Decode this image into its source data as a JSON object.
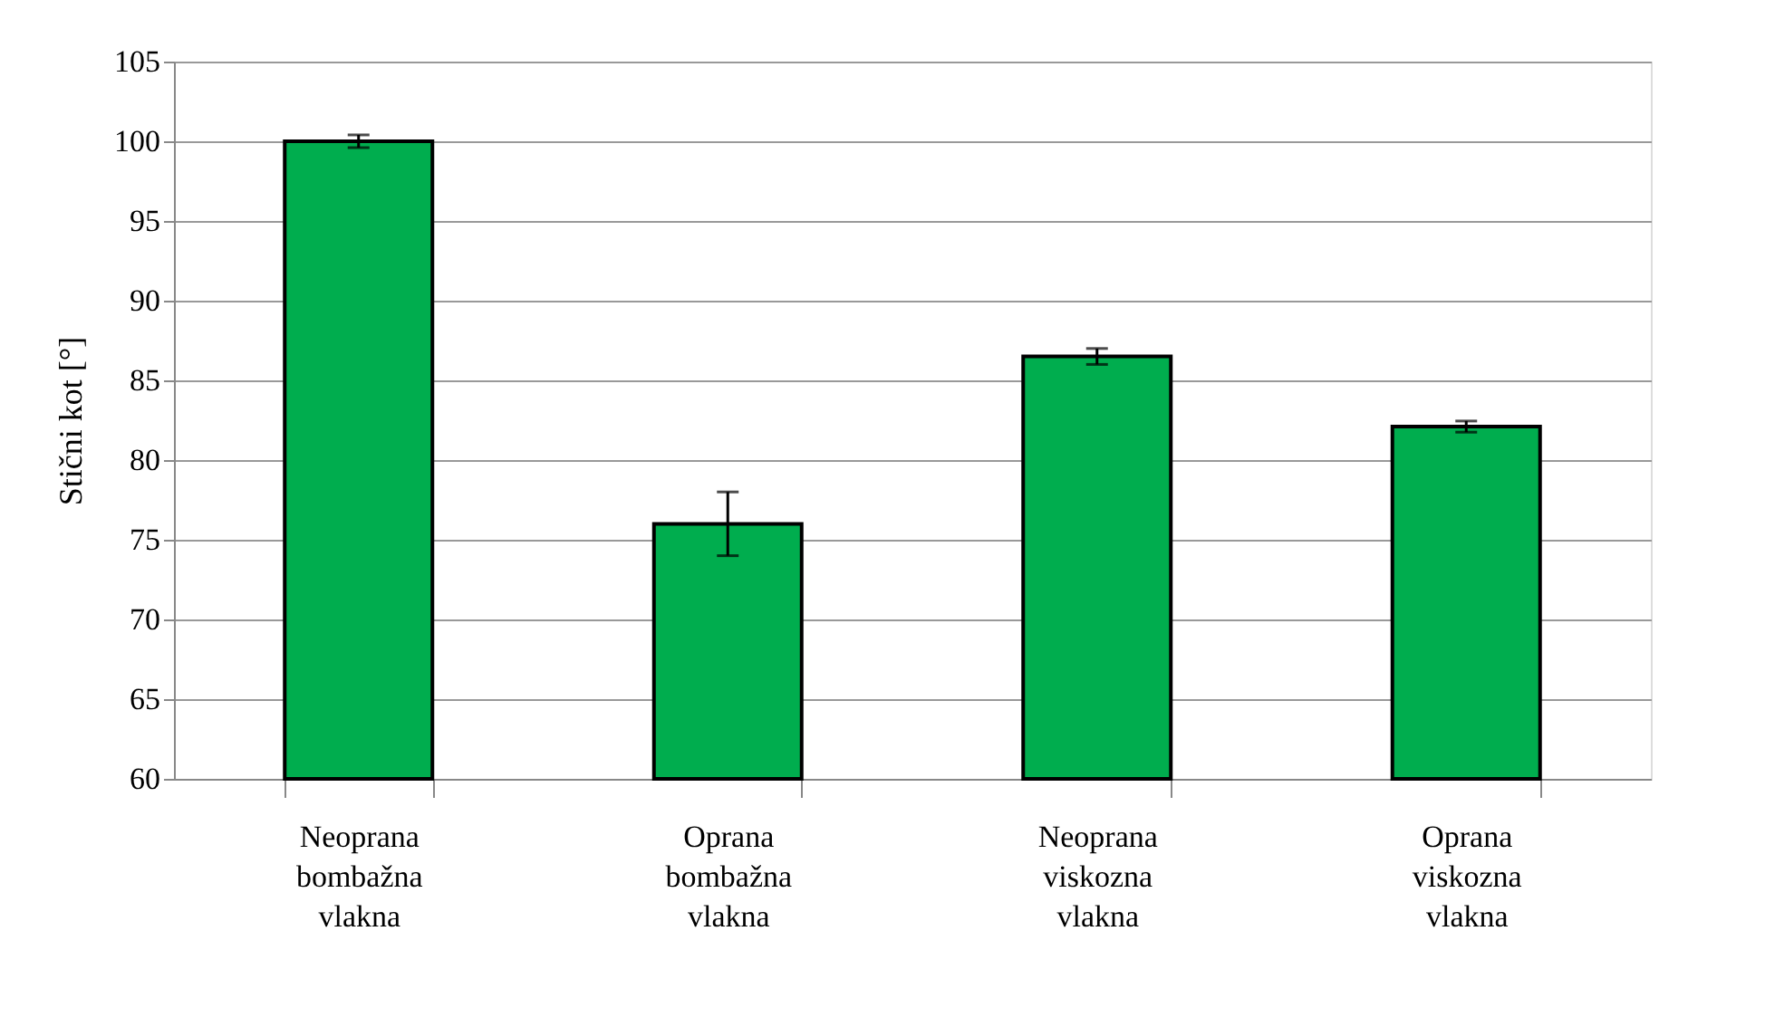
{
  "chart_data": {
    "type": "bar",
    "ylabel": "Stični kot [°]",
    "categories": [
      "Neoprana bombažna vlakna",
      "Oprana bombažna vlakna",
      "Neoprana viskozna vlakna",
      "Oprana viskozna vlakna"
    ],
    "values": [
      100,
      76,
      86.5,
      82.1
    ],
    "errors": [
      0.4,
      2,
      0.5,
      0.35
    ],
    "color": "#00ad4e",
    "ylim": [
      60,
      105
    ],
    "yticks": [
      60,
      65,
      70,
      75,
      80,
      85,
      90,
      95,
      100,
      105
    ],
    "grid": "y"
  }
}
